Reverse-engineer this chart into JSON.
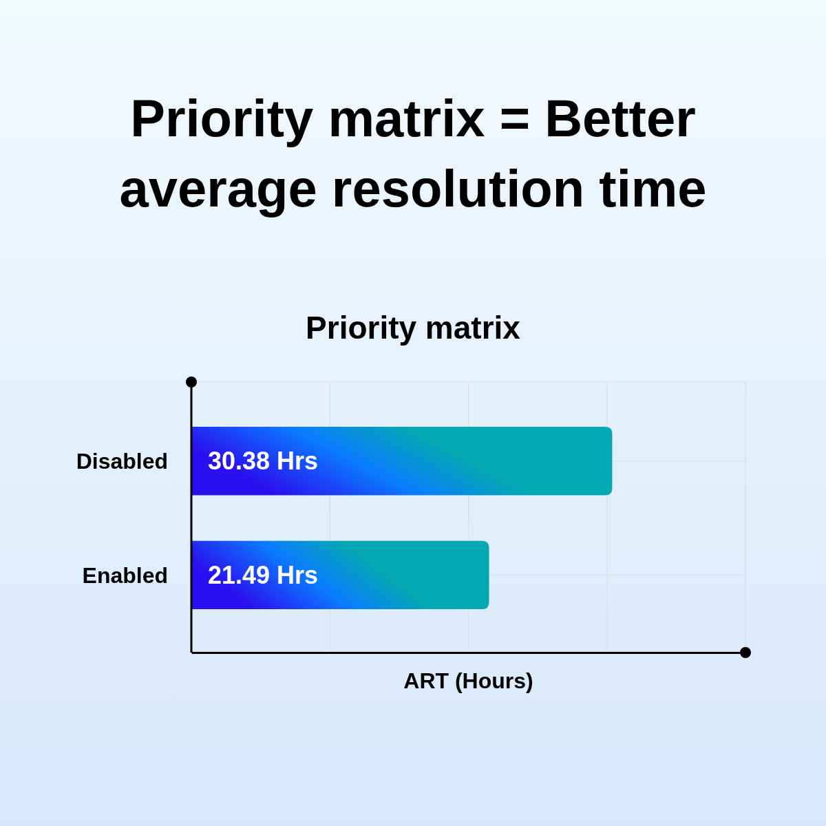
{
  "chart_data": {
    "type": "bar",
    "orientation": "horizontal",
    "title": "Priority matrix = Better average resolution time",
    "subtitle": "Priority matrix",
    "xlabel": "ART (Hours)",
    "categories": [
      "Disabled",
      "Enabled"
    ],
    "series": [
      {
        "color": "#04a8b2",
        "values": [
          30.38,
          21.49
        ],
        "value_labels": [
          "30.38 Hrs",
          "21.49 Hrs"
        ]
      }
    ],
    "xlim": [
      0,
      40
    ],
    "xticks": [
      {
        "value": 10,
        "label": null
      },
      {
        "value": 20,
        "label": null
      },
      {
        "value": 30,
        "label": null
      }
    ],
    "grid": true
  }
}
